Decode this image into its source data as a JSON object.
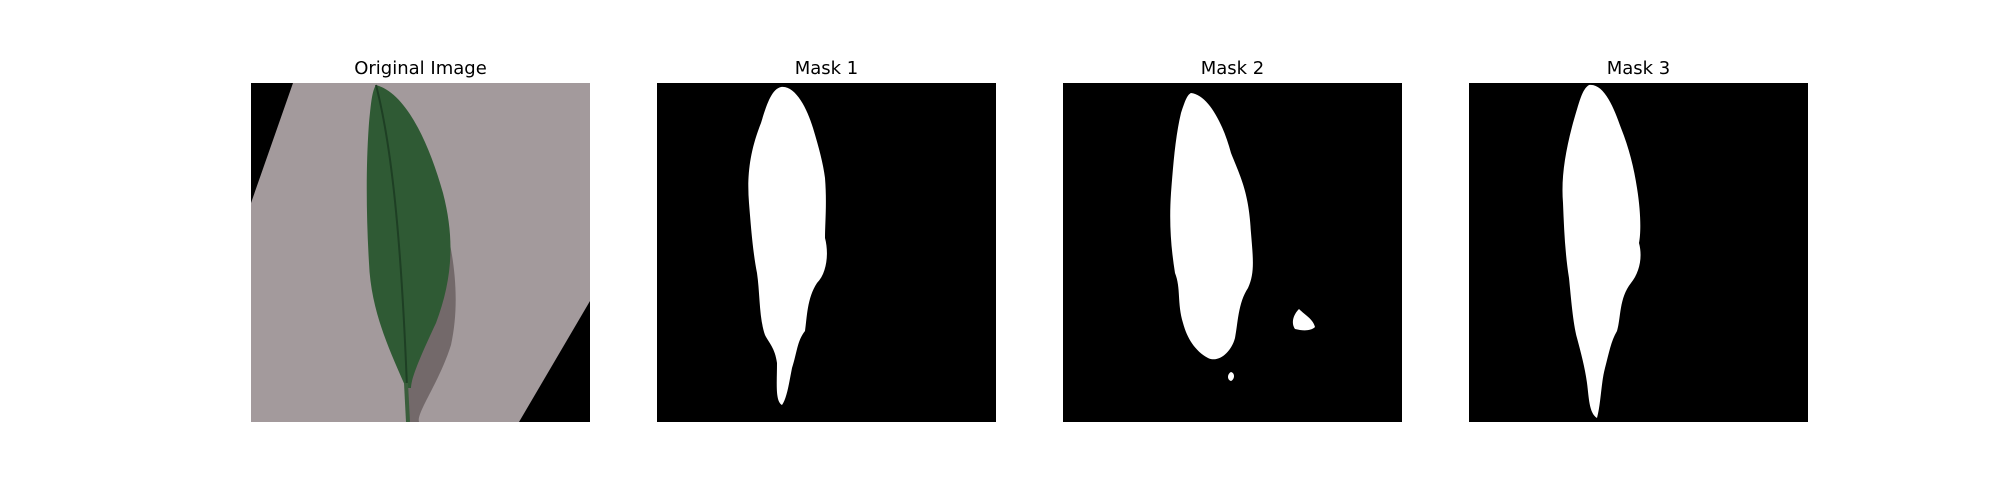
{
  "figure": {
    "panels": [
      {
        "title": "Original Image",
        "image": "leaf-photo"
      },
      {
        "title": "Mask 1",
        "image": "binary-mask"
      },
      {
        "title": "Mask 2",
        "image": "binary-mask"
      },
      {
        "title": "Mask 3",
        "image": "binary-mask"
      }
    ]
  },
  "colors": {
    "background": "#ffffff",
    "mask_background": "#000000",
    "mask_foreground": "#ffffff",
    "paper": "#a39a9c",
    "leaf": "#2f5a34",
    "leaf_dark": "#1e3f24",
    "shadow": "#5e5456"
  }
}
